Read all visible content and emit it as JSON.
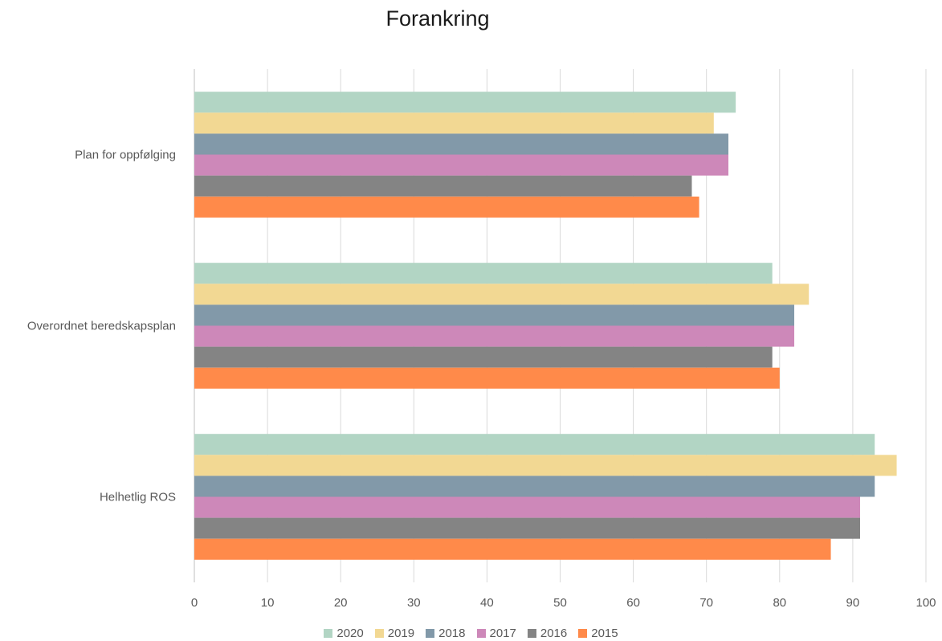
{
  "chart_data": {
    "type": "bar",
    "orientation": "horizontal",
    "title": "Forankring",
    "categories": [
      "Plan for oppfølging",
      "Overordnet beredskapsplan",
      "Helhetlig ROS"
    ],
    "xlim": [
      0,
      100
    ],
    "xticks": [
      0,
      10,
      20,
      30,
      40,
      50,
      60,
      70,
      80,
      90,
      100
    ],
    "grid": "vertical",
    "legend_position": "bottom",
    "series": [
      {
        "name": "2020",
        "color": "#b2d5c4",
        "values": [
          74,
          79,
          93
        ]
      },
      {
        "name": "2019",
        "color": "#f2d893",
        "values": [
          71,
          84,
          96
        ]
      },
      {
        "name": "2018",
        "color": "#8299a9",
        "values": [
          73,
          82,
          93
        ]
      },
      {
        "name": "2017",
        "color": "#cd88b9",
        "values": [
          73,
          82,
          91
        ]
      },
      {
        "name": "2016",
        "color": "#848484",
        "values": [
          68,
          79,
          91
        ]
      },
      {
        "name": "2015",
        "color": "#ff8a4a",
        "values": [
          69,
          80,
          87
        ]
      }
    ]
  }
}
